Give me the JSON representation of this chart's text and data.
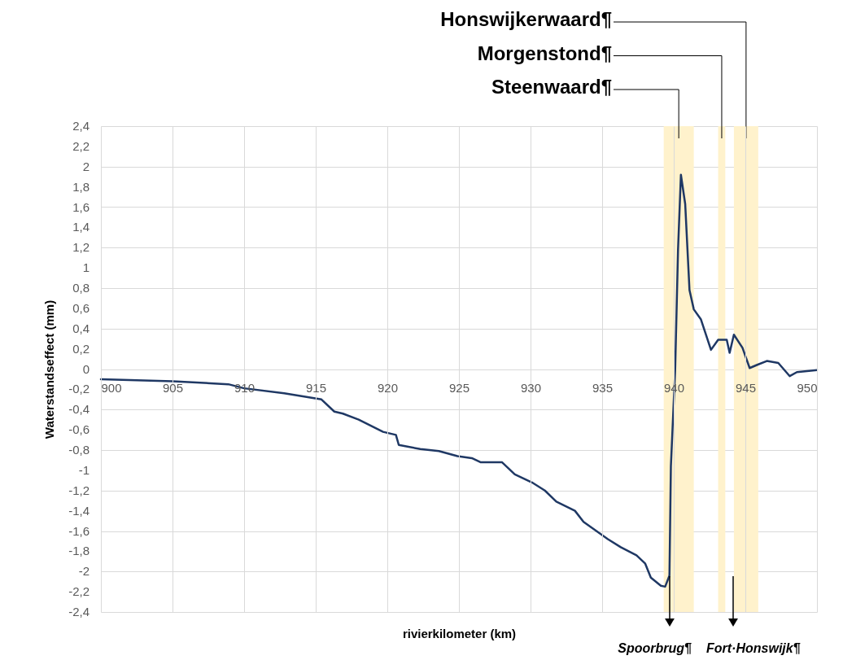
{
  "chart_data": {
    "type": "line",
    "xlabel": "rivierkilometer (km)",
    "ylabel": "Waterstandseffect (mm)",
    "x": [
      900,
      905,
      908.9,
      910,
      912.8,
      915.4,
      916.3,
      916.9,
      918,
      919.7,
      920.6,
      920.8,
      922.3,
      923.6,
      924.9,
      925.9,
      926.5,
      928.0,
      928.9,
      930.1,
      931.0,
      931.8,
      933.1,
      933.7,
      935.4,
      936.3,
      937.4,
      938.0,
      938.4,
      939.1,
      939.4,
      939.7,
      939.8,
      940.1,
      940.3,
      940.5,
      940.8,
      941.1,
      941.4,
      941.9,
      942.6,
      943.1,
      943.7,
      943.9,
      944.2,
      944.8,
      945.3,
      945.8,
      946.5,
      947.3,
      948.1,
      948.6,
      950
    ],
    "series": [
      {
        "color": "#1f3864",
        "values": [
          -0.1,
          -0.12,
          -0.15,
          -0.19,
          -0.24,
          -0.3,
          -0.42,
          -0.44,
          -0.5,
          -0.62,
          -0.65,
          -0.75,
          -0.79,
          -0.81,
          -0.86,
          -0.88,
          -0.92,
          -0.92,
          -1.04,
          -1.12,
          -1.2,
          -1.31,
          -1.4,
          -1.51,
          -1.68,
          -1.76,
          -1.84,
          -1.92,
          -2.06,
          -2.14,
          -2.15,
          -2.04,
          -0.96,
          0,
          1.18,
          1.92,
          1.63,
          0.78,
          0.59,
          0.49,
          0.19,
          0.29,
          0.29,
          0.16,
          0.34,
          0.21,
          0.01,
          0.04,
          0.08,
          0.06,
          -0.07,
          -0.03,
          -0.01
        ]
      }
    ],
    "xlim": [
      900,
      950
    ],
    "xticks": [
      900,
      905,
      910,
      915,
      920,
      925,
      930,
      935,
      940,
      945,
      950
    ],
    "ylim": [
      -2.4,
      2.4
    ],
    "yticks": [
      {
        "value": -2.4,
        "label": "-2,4"
      },
      {
        "value": -2.2,
        "label": "-2,2"
      },
      -2,
      {
        "value": -1.8,
        "label": "-1,8"
      },
      {
        "value": -1.6,
        "label": "-1,6"
      },
      {
        "value": -1.4,
        "label": "-1,4"
      },
      {
        "value": -1.2,
        "label": "-1,2"
      },
      -1,
      {
        "value": -0.8,
        "label": "-0,8"
      },
      {
        "value": -0.6,
        "label": "-0,6"
      },
      {
        "value": -0.4,
        "label": "-0,4"
      },
      {
        "value": -0.2,
        "label": "-0,2"
      },
      0,
      {
        "value": 0.2,
        "label": "0,2"
      },
      {
        "value": 0.4,
        "label": "0,4"
      },
      {
        "value": 0.6,
        "label": "0,6"
      },
      {
        "value": 0.8,
        "label": "0,8"
      },
      1,
      {
        "value": 1.2,
        "label": "1,2"
      },
      {
        "value": 1.4,
        "label": "1,4"
      },
      {
        "value": 1.6,
        "label": "1,6"
      },
      {
        "value": 1.8,
        "label": "1,8"
      },
      2,
      {
        "value": 2.2,
        "label": "2,2"
      },
      {
        "value": 2.4,
        "label": "2,4"
      }
    ],
    "grid": true,
    "bands": [
      {
        "axis": "x",
        "from": 939.3,
        "to": 941.4,
        "color": "#fff2cc"
      },
      {
        "axis": "x",
        "from": 943.1,
        "to": 943.6,
        "color": "#fff2cc"
      },
      {
        "axis": "x",
        "from": 944.2,
        "to": 945.9,
        "color": "#fff2cc"
      }
    ],
    "annotations": [
      "Steenwaard¶",
      "Morgenstond¶",
      "Honswijkerwaard¶",
      "Spoorbrug¶",
      "Fort·Honswijk¶"
    ]
  }
}
